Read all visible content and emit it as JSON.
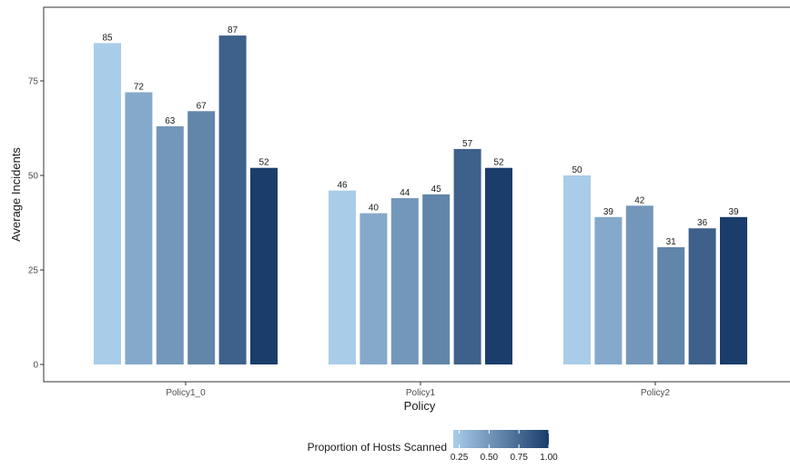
{
  "chart_data": {
    "type": "bar",
    "xlabel": "Policy",
    "ylabel": "Average Incidents",
    "categories": [
      "Policy1_0",
      "Policy1",
      "Policy2"
    ],
    "yticks": [
      0,
      25,
      50,
      75
    ],
    "ylim": [
      0,
      90
    ],
    "grid": false,
    "groups": [
      {
        "category": "Policy1_0",
        "bars": [
          {
            "proportion": 0.2,
            "value": 85
          },
          {
            "proportion": 0.4,
            "value": 72
          },
          {
            "proportion": 0.5,
            "value": 63
          },
          {
            "proportion": 0.6,
            "value": 67
          },
          {
            "proportion": 0.8,
            "value": 87
          },
          {
            "proportion": 1.0,
            "value": 52
          }
        ]
      },
      {
        "category": "Policy1",
        "bars": [
          {
            "proportion": 0.2,
            "value": 46
          },
          {
            "proportion": 0.4,
            "value": 40
          },
          {
            "proportion": 0.5,
            "value": 44
          },
          {
            "proportion": 0.6,
            "value": 45
          },
          {
            "proportion": 0.8,
            "value": 57
          },
          {
            "proportion": 1.0,
            "value": 52
          }
        ]
      },
      {
        "category": "Policy2",
        "bars": [
          {
            "proportion": 0.2,
            "value": 50
          },
          {
            "proportion": 0.4,
            "value": 39
          },
          {
            "proportion": 0.5,
            "value": 42
          },
          {
            "proportion": 0.6,
            "value": 31
          },
          {
            "proportion": 0.8,
            "value": 36
          },
          {
            "proportion": 1.0,
            "value": 39
          }
        ]
      }
    ],
    "legend": {
      "title": "Proportion of Hosts Scanned",
      "placement": "bottom",
      "type": "colorbar",
      "range": [
        0.2,
        1.0
      ],
      "ticks": [
        "0.25",
        "0.50",
        "0.75",
        "1.00"
      ],
      "color_low": "#a9cde9",
      "color_high": "#1a3d6b"
    }
  }
}
